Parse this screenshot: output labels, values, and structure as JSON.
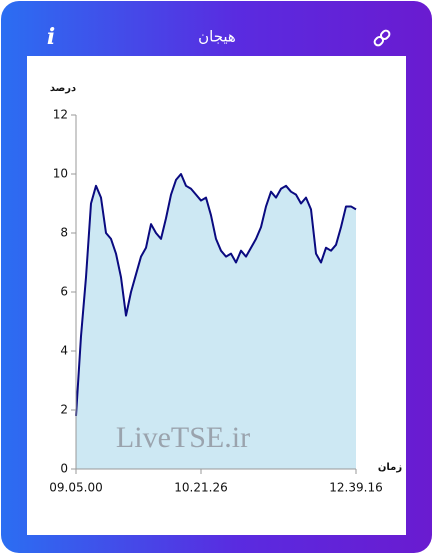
{
  "header": {
    "title": "هیجان",
    "info": "i"
  },
  "chart_data": {
    "type": "area",
    "y_label": "درصد",
    "x_label": "زمان",
    "annotation": "LiveTSE.ir",
    "categories": [
      "09.05.00",
      null,
      null,
      null,
      null,
      null,
      null,
      null,
      null,
      null,
      null,
      null,
      null,
      null,
      null,
      null,
      null,
      null,
      null,
      null,
      null,
      null,
      null,
      null,
      null,
      "10.21.26",
      null,
      null,
      null,
      null,
      null,
      null,
      null,
      null,
      null,
      null,
      null,
      null,
      null,
      null,
      null,
      null,
      null,
      null,
      null,
      null,
      null,
      null,
      null,
      null,
      null,
      null,
      null,
      null,
      null,
      null,
      "12.39.16"
    ],
    "values": [
      1.8,
      4.5,
      6.5,
      9.0,
      9.6,
      9.2,
      8.0,
      7.8,
      7.3,
      6.5,
      5.2,
      6.0,
      6.6,
      7.2,
      7.5,
      8.3,
      8.0,
      7.8,
      8.5,
      9.3,
      9.8,
      10.0,
      9.6,
      9.5,
      9.3,
      9.1,
      9.2,
      8.6,
      7.8,
      7.4,
      7.2,
      7.3,
      7.0,
      7.4,
      7.2,
      7.5,
      7.8,
      8.2,
      8.9,
      9.4,
      9.2,
      9.5,
      9.6,
      9.4,
      9.3,
      9.0,
      9.2,
      8.8,
      7.3,
      7.0,
      7.5,
      7.4,
      7.6,
      8.2,
      8.9,
      8.9,
      8.8
    ],
    "color": "#0a0a80",
    "fill": "#cde8f3",
    "ylim": [
      0,
      12
    ],
    "yticks": [
      0,
      2,
      4,
      6,
      8,
      10,
      12
    ]
  }
}
